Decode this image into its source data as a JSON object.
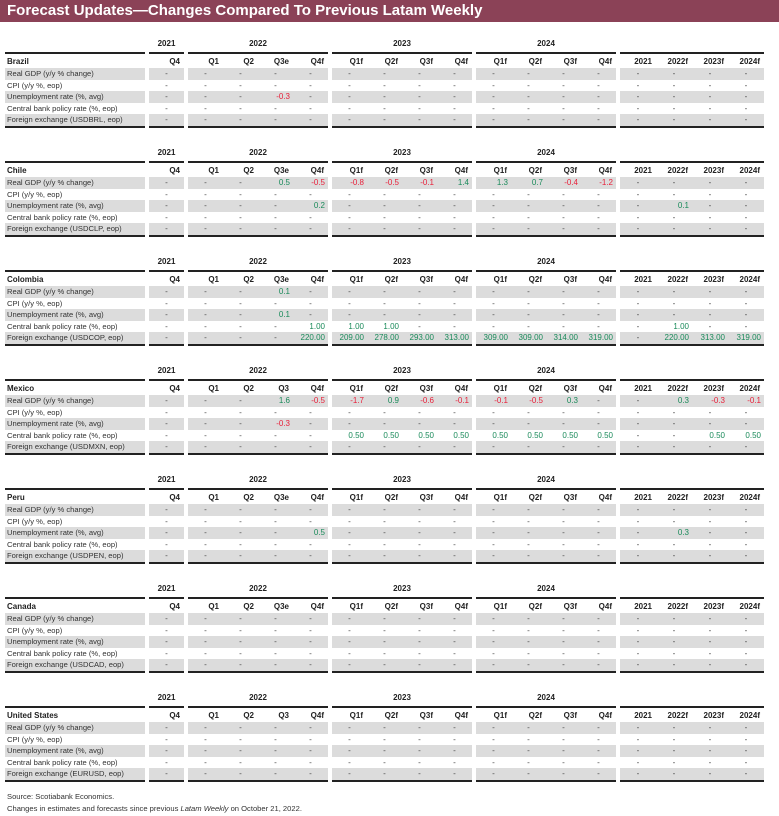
{
  "title": "Forecast Updates—Changes Compared To Previous Latam Weekly",
  "year_labels": {
    "y2021": "2021",
    "y2022": "2022",
    "y2023": "2023",
    "y2024": "2024"
  },
  "row_labels_note": "",
  "colors": {
    "title_bar": "#8b4257",
    "positive": "#1a8a5a",
    "negative": "#e8203a",
    "shade": "#dcdcdc"
  },
  "countries": [
    {
      "name": "Brazil",
      "headers": [
        "Q4",
        "Q1",
        "Q2",
        "Q3e",
        "Q4f",
        "Q1f",
        "Q2f",
        "Q3f",
        "Q4f",
        "Q1f",
        "Q2f",
        "Q3f",
        "Q4f",
        "2021",
        "2022f",
        "2023f",
        "2024f"
      ],
      "rows": [
        {
          "label": "Real GDP (y/y % change)",
          "values": [
            "-",
            "-",
            "-",
            "-",
            "-",
            "-",
            "-",
            "-",
            "-",
            "-",
            "-",
            "-",
            "-",
            "-",
            "-",
            "-",
            "-"
          ]
        },
        {
          "label": "CPI (y/y %, eop)",
          "values": [
            "-",
            "-",
            "-",
            "-",
            "-",
            "-",
            "-",
            "-",
            "-",
            "-",
            "-",
            "-",
            "-",
            "-",
            "-",
            "-",
            "-"
          ]
        },
        {
          "label": "Unemployment rate (%, avg)",
          "values": [
            "-",
            "-",
            "-",
            "-0.3",
            "-",
            "-",
            "-",
            "-",
            "-",
            "-",
            "-",
            "-",
            "-",
            "-",
            "-",
            "-",
            "-"
          ]
        },
        {
          "label": "Central bank policy rate (%, eop)",
          "values": [
            "-",
            "-",
            "-",
            "-",
            "-",
            "-",
            "-",
            "-",
            "-",
            "-",
            "-",
            "-",
            "-",
            "-",
            "-",
            "-",
            "-"
          ]
        },
        {
          "label": "Foreign exchange (USDBRL, eop)",
          "values": [
            "-",
            "-",
            "-",
            "-",
            "-",
            "-",
            "-",
            "-",
            "-",
            "-",
            "-",
            "-",
            "-",
            "-",
            "-",
            "-",
            "-"
          ]
        }
      ]
    },
    {
      "name": "Chile",
      "headers": [
        "Q4",
        "Q1",
        "Q2",
        "Q3e",
        "Q4f",
        "Q1f",
        "Q2f",
        "Q3f",
        "Q4f",
        "Q1f",
        "Q2f",
        "Q3f",
        "Q4f",
        "2021",
        "2022f",
        "2023f",
        "2024f"
      ],
      "rows": [
        {
          "label": "Real GDP (y/y % change)",
          "values": [
            "-",
            "-",
            "-",
            "0.5",
            "-0.5",
            "-0.8",
            "-0.5",
            "-0.1",
            "1.4",
            "1.3",
            "0.7",
            "-0.4",
            "-1.2",
            "-",
            "-",
            "-",
            "-"
          ]
        },
        {
          "label": "CPI (y/y %, eop)",
          "values": [
            "-",
            "-",
            "-",
            "-",
            "-",
            "-",
            "-",
            "-",
            "-",
            "-",
            "-",
            "-",
            "-",
            "-",
            "-",
            "-",
            "-"
          ]
        },
        {
          "label": "Unemployment rate (%, avg)",
          "values": [
            "-",
            "-",
            "-",
            "-",
            "0.2",
            "-",
            "-",
            "-",
            "-",
            "-",
            "-",
            "-",
            "-",
            "-",
            "0.1",
            "-",
            "-"
          ]
        },
        {
          "label": "Central bank policy rate (%, eop)",
          "values": [
            "-",
            "-",
            "-",
            "-",
            "-",
            "-",
            "-",
            "-",
            "-",
            "-",
            "-",
            "-",
            "-",
            "-",
            "-",
            "-",
            "-"
          ]
        },
        {
          "label": "Foreign exchange (USDCLP, eop)",
          "values": [
            "-",
            "-",
            "-",
            "-",
            "-",
            "-",
            "-",
            "-",
            "-",
            "-",
            "-",
            "-",
            "-",
            "-",
            "-",
            "-",
            "-"
          ]
        }
      ]
    },
    {
      "name": "Colombia",
      "headers": [
        "Q4",
        "Q1",
        "Q2",
        "Q3e",
        "Q4f",
        "Q1f",
        "Q2f",
        "Q3f",
        "Q4f",
        "Q1f",
        "Q2f",
        "Q3f",
        "Q4f",
        "2021",
        "2022f",
        "2023f",
        "2024f"
      ],
      "rows": [
        {
          "label": "Real GDP (y/y % change)",
          "values": [
            "-",
            "-",
            "-",
            "0.1",
            "-",
            "-",
            "-",
            "-",
            "-",
            "-",
            "-",
            "-",
            "-",
            "-",
            "-",
            "-",
            "-"
          ]
        },
        {
          "label": "CPI (y/y %, eop)",
          "values": [
            "-",
            "-",
            "-",
            "-",
            "-",
            "-",
            "-",
            "-",
            "-",
            "-",
            "-",
            "-",
            "-",
            "-",
            "-",
            "-",
            "-"
          ]
        },
        {
          "label": "Unemployment rate (%, avg)",
          "values": [
            "-",
            "-",
            "-",
            "0.1",
            "-",
            "-",
            "-",
            "-",
            "-",
            "-",
            "-",
            "-",
            "-",
            "-",
            "-",
            "-",
            "-"
          ]
        },
        {
          "label": "Central bank policy rate (%, eop)",
          "values": [
            "-",
            "-",
            "-",
            "-",
            "1.00",
            "1.00",
            "1.00",
            "-",
            "-",
            "-",
            "-",
            "-",
            "-",
            "-",
            "1.00",
            "-",
            "-"
          ]
        },
        {
          "label": "Foreign exchange (USDCOP, eop)",
          "values": [
            "-",
            "-",
            "-",
            "-",
            "220.00",
            "209.00",
            "278.00",
            "293.00",
            "313.00",
            "309.00",
            "309.00",
            "314.00",
            "319.00",
            "-",
            "220.00",
            "313.00",
            "319.00"
          ]
        }
      ]
    },
    {
      "name": "Mexico",
      "headers": [
        "Q4",
        "Q1",
        "Q2",
        "Q3",
        "Q4f",
        "Q1f",
        "Q2f",
        "Q3f",
        "Q4f",
        "Q1f",
        "Q2f",
        "Q3f",
        "Q4f",
        "2021",
        "2022f",
        "2023f",
        "2024f"
      ],
      "rows": [
        {
          "label": "Real GDP (y/y % change)",
          "values": [
            "-",
            "-",
            "-",
            "1.6",
            "-0.5",
            "-1.7",
            "0.9",
            "-0.6",
            "-0.1",
            "-0.1",
            "-0.5",
            "0.3",
            "-",
            "-",
            "0.3",
            "-0.3",
            "-0.1"
          ]
        },
        {
          "label": "CPI (y/y %, eop)",
          "values": [
            "-",
            "-",
            "-",
            "-",
            "-",
            "-",
            "-",
            "-",
            "-",
            "-",
            "-",
            "-",
            "-",
            "-",
            "-",
            "-",
            "-"
          ]
        },
        {
          "label": "Unemployment rate (%, avg)",
          "values": [
            "-",
            "-",
            "-",
            "-0.3",
            "-",
            "-",
            "-",
            "-",
            "-",
            "-",
            "-",
            "-",
            "-",
            "-",
            "-",
            "-",
            "-"
          ]
        },
        {
          "label": "Central bank policy rate (%, eop)",
          "values": [
            "-",
            "-",
            "-",
            "-",
            "-",
            "0.50",
            "0.50",
            "0.50",
            "0.50",
            "0.50",
            "0.50",
            "0.50",
            "0.50",
            "-",
            "-",
            "0.50",
            "0.50"
          ]
        },
        {
          "label": "Foreign exchange (USDMXN, eop)",
          "values": [
            "-",
            "-",
            "-",
            "-",
            "-",
            "-",
            "-",
            "-",
            "-",
            "-",
            "-",
            "-",
            "-",
            "-",
            "-",
            "-",
            "-"
          ]
        }
      ]
    },
    {
      "name": "Peru",
      "headers": [
        "Q4",
        "Q1",
        "Q2",
        "Q3e",
        "Q4f",
        "Q1f",
        "Q2f",
        "Q3f",
        "Q4f",
        "Q1f",
        "Q2f",
        "Q3f",
        "Q4f",
        "2021",
        "2022f",
        "2023f",
        "2024f"
      ],
      "rows": [
        {
          "label": "Real GDP (y/y % change)",
          "values": [
            "-",
            "-",
            "-",
            "-",
            "-",
            "-",
            "-",
            "-",
            "-",
            "-",
            "-",
            "-",
            "-",
            "-",
            "-",
            "-",
            "-"
          ]
        },
        {
          "label": "CPI (y/y %, eop)",
          "values": [
            "-",
            "-",
            "-",
            "-",
            "-",
            "-",
            "-",
            "-",
            "-",
            "-",
            "-",
            "-",
            "-",
            "-",
            "-",
            "-",
            "-"
          ]
        },
        {
          "label": "Unemployment rate (%, avg)",
          "values": [
            "-",
            "-",
            "-",
            "-",
            "0.5",
            "-",
            "-",
            "-",
            "-",
            "-",
            "-",
            "-",
            "-",
            "-",
            "0.3",
            "-",
            "-"
          ]
        },
        {
          "label": "Central bank policy rate (%, eop)",
          "values": [
            "-",
            "-",
            "-",
            "-",
            "-",
            "-",
            "-",
            "-",
            "-",
            "-",
            "-",
            "-",
            "-",
            "-",
            "-",
            "-",
            "-"
          ]
        },
        {
          "label": "Foreign exchange (USDPEN, eop)",
          "values": [
            "-",
            "-",
            "-",
            "-",
            "-",
            "-",
            "-",
            "-",
            "-",
            "-",
            "-",
            "-",
            "-",
            "-",
            "-",
            "-",
            "-"
          ]
        }
      ]
    },
    {
      "name": "Canada",
      "headers": [
        "Q4",
        "Q1",
        "Q2",
        "Q3e",
        "Q4f",
        "Q1f",
        "Q2f",
        "Q3f",
        "Q4f",
        "Q1f",
        "Q2f",
        "Q3f",
        "Q4f",
        "2021",
        "2022f",
        "2023f",
        "2024f"
      ],
      "rows": [
        {
          "label": "Real GDP (y/y % change)",
          "values": [
            "-",
            "-",
            "-",
            "-",
            "-",
            "-",
            "-",
            "-",
            "-",
            "-",
            "-",
            "-",
            "-",
            "-",
            "-",
            "-",
            "-"
          ]
        },
        {
          "label": "CPI (y/y %, eop)",
          "values": [
            "-",
            "-",
            "-",
            "-",
            "-",
            "-",
            "-",
            "-",
            "-",
            "-",
            "-",
            "-",
            "-",
            "-",
            "-",
            "-",
            "-"
          ]
        },
        {
          "label": "Unemployment rate (%, avg)",
          "values": [
            "-",
            "-",
            "-",
            "-",
            "-",
            "-",
            "-",
            "-",
            "-",
            "-",
            "-",
            "-",
            "-",
            "-",
            "-",
            "-",
            "-"
          ]
        },
        {
          "label": "Central bank policy rate (%, eop)",
          "values": [
            "-",
            "-",
            "-",
            "-",
            "-",
            "-",
            "-",
            "-",
            "-",
            "-",
            "-",
            "-",
            "-",
            "-",
            "-",
            "-",
            "-"
          ]
        },
        {
          "label": "Foreign exchange (USDCAD, eop)",
          "values": [
            "-",
            "-",
            "-",
            "-",
            "-",
            "-",
            "-",
            "-",
            "-",
            "-",
            "-",
            "-",
            "-",
            "-",
            "-",
            "-",
            "-"
          ]
        }
      ]
    },
    {
      "name": "United States",
      "headers": [
        "Q4",
        "Q1",
        "Q2",
        "Q3",
        "Q4f",
        "Q1f",
        "Q2f",
        "Q3f",
        "Q4f",
        "Q1f",
        "Q2f",
        "Q3f",
        "Q4f",
        "2021",
        "2022f",
        "2023f",
        "2024f"
      ],
      "rows": [
        {
          "label": "Real GDP (y/y % change)",
          "values": [
            "-",
            "-",
            "-",
            "-",
            "-",
            "-",
            "-",
            "-",
            "-",
            "-",
            "-",
            "-",
            "-",
            "-",
            "-",
            "-",
            "-"
          ]
        },
        {
          "label": "CPI (y/y %, eop)",
          "values": [
            "-",
            "-",
            "-",
            "-",
            "-",
            "-",
            "-",
            "-",
            "-",
            "-",
            "-",
            "-",
            "-",
            "-",
            "-",
            "-",
            "-"
          ]
        },
        {
          "label": "Unemployment rate (%, avg)",
          "values": [
            "-",
            "-",
            "-",
            "-",
            "-",
            "-",
            "-",
            "-",
            "-",
            "-",
            "-",
            "-",
            "-",
            "-",
            "-",
            "-",
            "-"
          ]
        },
        {
          "label": "Central bank policy rate (%, eop)",
          "values": [
            "-",
            "-",
            "-",
            "-",
            "-",
            "-",
            "-",
            "-",
            "-",
            "-",
            "-",
            "-",
            "-",
            "-",
            "-",
            "-",
            "-"
          ]
        },
        {
          "label": "Foreign exchange (EURUSD, eop)",
          "values": [
            "-",
            "-",
            "-",
            "-",
            "-",
            "-",
            "-",
            "-",
            "-",
            "-",
            "-",
            "-",
            "-",
            "-",
            "-",
            "-",
            "-"
          ]
        }
      ]
    }
  ],
  "footer": {
    "source": "Source: Scotiabank Economics.",
    "note_prefix": "Changes in estimates and forecasts since previous ",
    "note_italic": "Latam Weekly",
    "note_suffix": " on October 21, 2022."
  }
}
